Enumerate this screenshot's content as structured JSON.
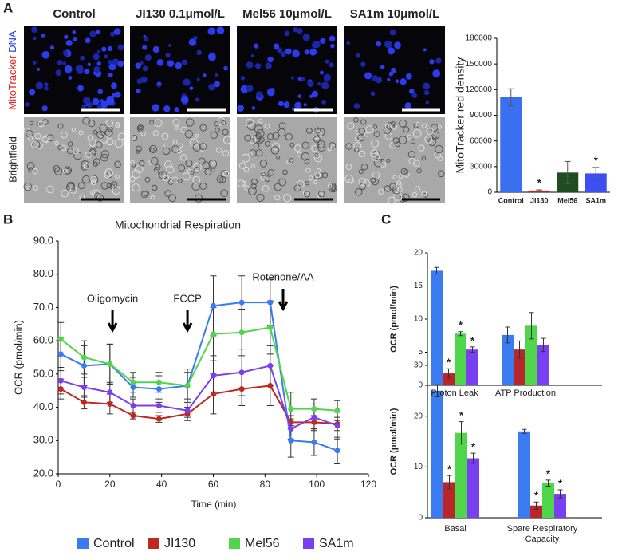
{
  "figure": {
    "panel_labels": [
      "A",
      "B",
      "C"
    ],
    "column_headers": [
      "Control",
      "JI130 0.1μmol/L",
      "Mel56 10μmol/L",
      "SA1m 10μmol/L"
    ],
    "row_labels": {
      "stain_red": "MitoTracker",
      "stain_blue": "DNA",
      "brightfield": "Brightfield"
    }
  },
  "chart_data": [
    {
      "type": "bar",
      "y_label": "MitoTracker red density",
      "categories": [
        "Control",
        "JI130",
        "Mel56",
        "SA1m"
      ],
      "values": [
        111000,
        2000,
        23000,
        22000
      ],
      "errors": [
        10000,
        800,
        13000,
        7000
      ],
      "colors": [
        "#3b6ff2",
        "#b8262a",
        "#1f4d22",
        "#3c4ff0"
      ],
      "significance": [
        null,
        "*",
        null,
        "*"
      ],
      "ylim": [
        0,
        180000
      ],
      "yticks": [
        0,
        30000,
        60000,
        90000,
        120000,
        150000,
        180000
      ]
    },
    {
      "type": "line",
      "title": "Mitochondrial Respiration",
      "x_label": "Time (min)",
      "y_label": "OCR (pmol/min)",
      "x": [
        1,
        10,
        20,
        29,
        39,
        50,
        60,
        71,
        82,
        90,
        99,
        108
      ],
      "series": [
        {
          "name": "Control",
          "color": "#3b7bf2",
          "values": [
            56,
            52.5,
            53,
            46,
            45.5,
            46.5,
            70.5,
            71.5,
            71.5,
            30,
            29.5,
            27
          ],
          "errors": [
            5,
            6,
            6,
            3,
            4,
            5,
            9,
            8,
            7,
            5,
            4,
            4
          ]
        },
        {
          "name": "JI130",
          "color": "#c0271f",
          "values": [
            45.5,
            41.5,
            41,
            37.5,
            36.5,
            38,
            44,
            45.5,
            46.5,
            35.5,
            35.5,
            35
          ],
          "errors": [
            3,
            2,
            3,
            1,
            1,
            2,
            6,
            5,
            6,
            2,
            2,
            2
          ]
        },
        {
          "name": "Mel56",
          "color": "#4fd64a",
          "values": [
            60.5,
            55,
            53,
            47.5,
            47.5,
            46.5,
            62,
            62.5,
            64,
            39.5,
            39.5,
            39
          ],
          "errors": [
            5,
            5,
            6,
            3,
            3,
            4,
            8,
            7,
            8,
            5,
            3,
            3
          ]
        },
        {
          "name": "SA1m",
          "color": "#7a3ff0",
          "values": [
            48,
            46,
            44.5,
            40.5,
            40.5,
            39,
            49.5,
            50.5,
            52.5,
            33.5,
            37,
            34.5
          ],
          "errors": [
            4,
            3,
            3,
            2,
            2,
            2,
            6,
            7,
            6,
            3,
            4,
            4
          ]
        }
      ],
      "annotations": [
        {
          "text": "Oligomycin",
          "x": 21
        },
        {
          "text": "FCCP",
          "x": 50
        },
        {
          "text": "Rotenone/AA",
          "x": 87
        }
      ],
      "xlim": [
        0,
        120
      ],
      "xticks": [
        0,
        20,
        40,
        60,
        80,
        100,
        120
      ],
      "ylim": [
        20,
        90
      ],
      "yticks": [
        {
          "value": 20,
          "label": "20.0"
        },
        {
          "value": 30,
          "label": "30.0"
        },
        {
          "value": 40,
          "label": "40.0"
        },
        {
          "value": 50,
          "label": "50.0"
        },
        {
          "value": 60,
          "label": "60.0"
        },
        {
          "value": 70,
          "label": "70.0"
        },
        {
          "value": 80,
          "label": "80.0"
        },
        {
          "value": 90,
          "label": "90.0"
        }
      ],
      "legend": "bottom"
    },
    {
      "type": "grouped_bar",
      "y_label": "OCR (pmol/min)",
      "categories": [
        "Proton Leak",
        "ATP Production"
      ],
      "series": [
        {
          "color": "#3b7bf2",
          "values": [
            17.3,
            7.6
          ],
          "errors": [
            0.5,
            1.2
          ],
          "significance": [
            null,
            null
          ]
        },
        {
          "color": "#b8262a",
          "values": [
            1.8,
            5.4
          ],
          "errors": [
            0.7,
            1.3
          ],
          "significance": [
            "*",
            null
          ]
        },
        {
          "color": "#4fd64a",
          "values": [
            7.8,
            9
          ],
          "errors": [
            0.3,
            2
          ],
          "significance": [
            "*",
            null
          ]
        },
        {
          "color": "#7a3ff0",
          "values": [
            5.4,
            6.1
          ],
          "errors": [
            0.4,
            1
          ],
          "significance": [
            "*",
            null
          ]
        }
      ],
      "ylim": [
        0,
        20
      ],
      "yticks": [
        0,
        5,
        10,
        15,
        20
      ]
    },
    {
      "type": "grouped_bar",
      "y_label": "OCR (pmol/min)",
      "categories": [
        "Basal",
        "Spare Respiratory Capacity"
      ],
      "series": [
        {
          "color": "#3b7bf2",
          "values": [
            25,
            17
          ],
          "errors": [
            1.2,
            0.4
          ],
          "significance": [
            null,
            null
          ]
        },
        {
          "color": "#b8262a",
          "values": [
            7,
            2.4
          ],
          "errors": [
            1.3,
            0.7
          ],
          "significance": [
            "*",
            "*"
          ]
        },
        {
          "color": "#4fd64a",
          "values": [
            16.7,
            6.8
          ],
          "errors": [
            2.2,
            0.6
          ],
          "significance": [
            "*",
            "*"
          ]
        },
        {
          "color": "#7a3ff0",
          "values": [
            11.7,
            4.7
          ],
          "errors": [
            1,
            0.8
          ],
          "significance": [
            "*",
            "*"
          ]
        }
      ],
      "ylim": [
        0,
        30
      ],
      "yticks": [
        0,
        10,
        20,
        30
      ]
    }
  ]
}
